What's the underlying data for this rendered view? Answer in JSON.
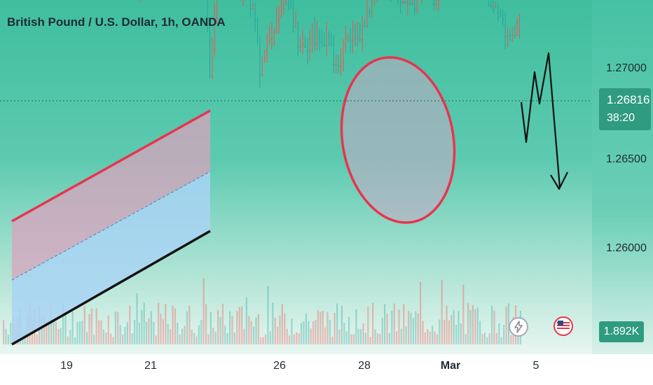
{
  "chart_data": {
    "type": "candlestick",
    "title": "British Pound / U.S. Dollar, 1h, OANDA",
    "y_tick_labels": [
      "1.27000",
      "1.26500",
      "1.26000"
    ],
    "y_ticks": [
      1.27,
      1.265,
      1.26
    ],
    "x_tick_labels": [
      "19",
      "21",
      "26",
      "28",
      "Mar",
      "5"
    ],
    "current_price": "1.26816",
    "countdown": "38:20",
    "volume_label": "1.892K",
    "grid": false,
    "up_color": "#26a69a",
    "down_color": "#ef5350",
    "channel_color": "#e8344e",
    "channel_fill_upper": "#d9a3bd",
    "channel_fill_lower": "#a9d3f5",
    "annotations": [
      "rising channel",
      "ellipse highlight",
      "projected zigzag path with down arrow"
    ]
  },
  "icons": {
    "event_1": "lightning-icon",
    "event_2": "us-flag-icon"
  }
}
